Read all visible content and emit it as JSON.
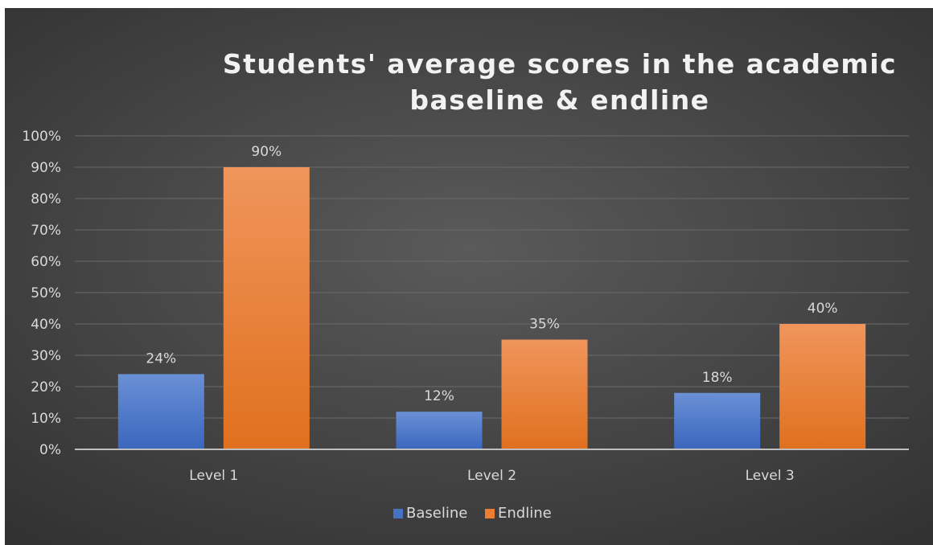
{
  "chart_data": {
    "type": "bar",
    "title_lines": [
      "Students' average scores in the academic",
      "baseline & endline"
    ],
    "categories": [
      "Level 1",
      "Level 2",
      "Level 3"
    ],
    "series": [
      {
        "name": "Baseline",
        "values": [
          24,
          12,
          18
        ],
        "labels": [
          "24%",
          "12%",
          "18%"
        ],
        "color": "#4472c4"
      },
      {
        "name": "Endline",
        "values": [
          90,
          35,
          40
        ],
        "labels": [
          "90%",
          "35%",
          "40%"
        ],
        "color": "#ed7d31"
      }
    ],
    "yticks": [
      "0%",
      "10%",
      "20%",
      "30%",
      "40%",
      "50%",
      "60%",
      "70%",
      "80%",
      "90%",
      "100%"
    ],
    "ylim": [
      0,
      100
    ],
    "ytick_step": 10,
    "grid": true,
    "legend_position": "bottom",
    "background": "dark-gradient"
  }
}
